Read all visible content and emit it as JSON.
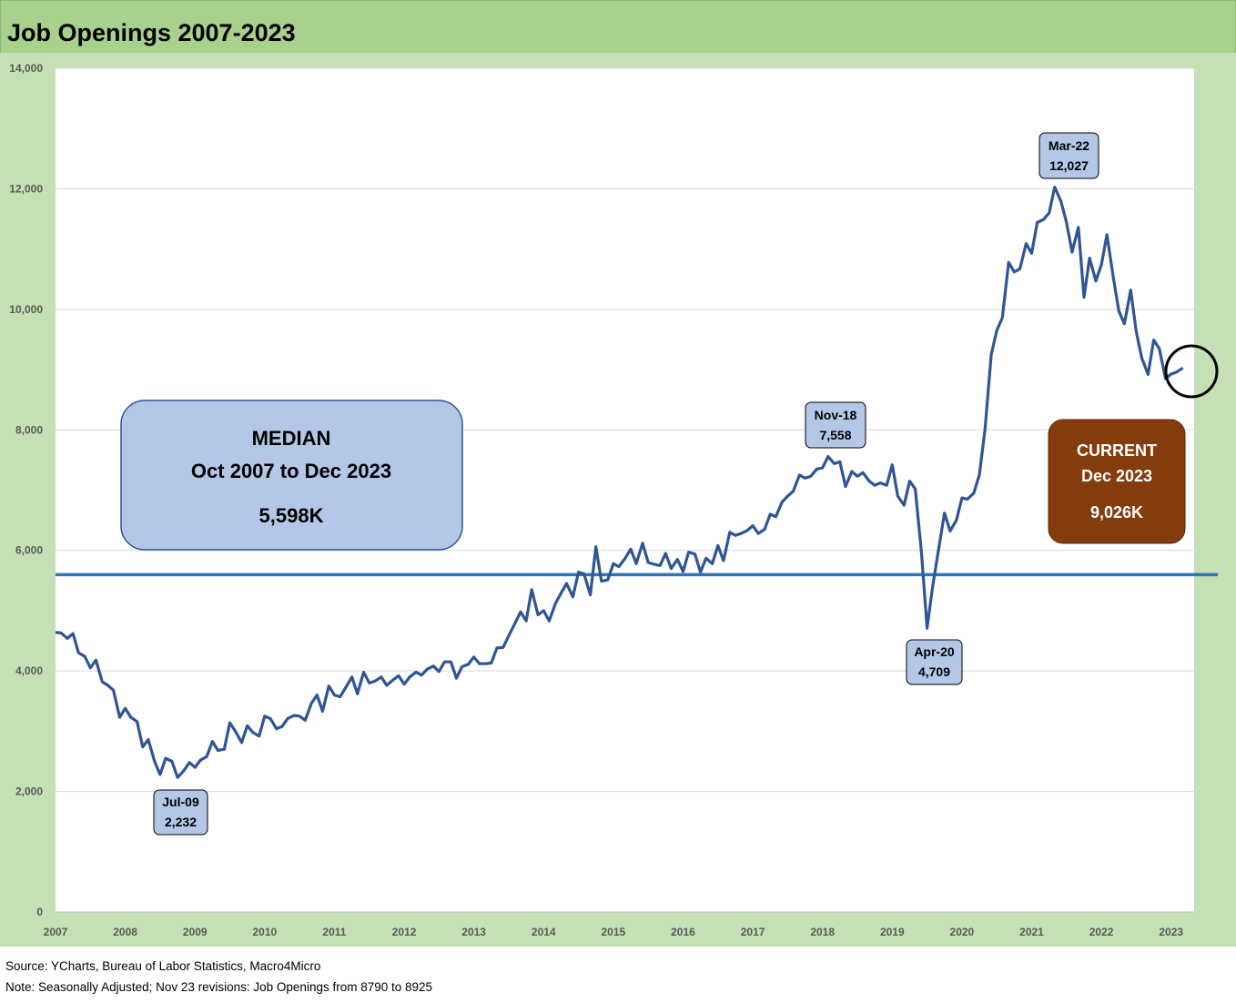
{
  "header": {
    "title": "Job Openings 2007-2023"
  },
  "chart_data": {
    "type": "line",
    "title": "Job Openings 2007-2023",
    "ylabel": "",
    "xlabel": "",
    "ylim": [
      0,
      14000
    ],
    "xlim": [
      2007.0,
      2023.33
    ],
    "y_ticks": [
      0,
      2000,
      4000,
      6000,
      8000,
      10000,
      12000,
      14000
    ],
    "y_tick_labels": [
      "0",
      "2,000",
      "4,000",
      "6,000",
      "8,000",
      "10,000",
      "12,000",
      "14,000"
    ],
    "x_tick_labels": [
      "2007",
      "2008",
      "2009",
      "2010",
      "2011",
      "2012",
      "2013",
      "2014",
      "2015",
      "2016",
      "2017",
      "2018",
      "2019",
      "2020",
      "2021",
      "2022",
      "2023"
    ],
    "series": [
      {
        "name": "Job Openings",
        "color": "#2f5597",
        "points": [
          [
            2007.0,
            4640
          ],
          [
            2007.08,
            4630
          ],
          [
            2007.17,
            4540
          ],
          [
            2007.25,
            4620
          ],
          [
            2007.33,
            4300
          ],
          [
            2007.42,
            4240
          ],
          [
            2007.5,
            4050
          ],
          [
            2007.58,
            4180
          ],
          [
            2007.67,
            3820
          ],
          [
            2007.75,
            3760
          ],
          [
            2007.83,
            3680
          ],
          [
            2007.92,
            3230
          ],
          [
            2008.0,
            3380
          ],
          [
            2008.08,
            3230
          ],
          [
            2008.17,
            3160
          ],
          [
            2008.25,
            2740
          ],
          [
            2008.33,
            2860
          ],
          [
            2008.42,
            2500
          ],
          [
            2008.5,
            2280
          ],
          [
            2008.58,
            2550
          ],
          [
            2008.67,
            2500
          ],
          [
            2008.75,
            2232
          ],
          [
            2008.83,
            2330
          ],
          [
            2008.92,
            2480
          ],
          [
            2009.0,
            2400
          ],
          [
            2009.08,
            2520
          ],
          [
            2009.17,
            2580
          ],
          [
            2009.25,
            2830
          ],
          [
            2009.33,
            2680
          ],
          [
            2009.42,
            2700
          ],
          [
            2009.5,
            3140
          ],
          [
            2009.58,
            3000
          ],
          [
            2009.67,
            2810
          ],
          [
            2009.75,
            3090
          ],
          [
            2009.83,
            2980
          ],
          [
            2009.92,
            2920
          ],
          [
            2010.0,
            3250
          ],
          [
            2010.08,
            3210
          ],
          [
            2010.17,
            3040
          ],
          [
            2010.25,
            3080
          ],
          [
            2010.33,
            3210
          ],
          [
            2010.42,
            3260
          ],
          [
            2010.5,
            3250
          ],
          [
            2010.58,
            3180
          ],
          [
            2010.67,
            3460
          ],
          [
            2010.75,
            3600
          ],
          [
            2010.83,
            3330
          ],
          [
            2010.92,
            3750
          ],
          [
            2011.0,
            3600
          ],
          [
            2011.08,
            3570
          ],
          [
            2011.17,
            3740
          ],
          [
            2011.25,
            3900
          ],
          [
            2011.33,
            3620
          ],
          [
            2011.42,
            3980
          ],
          [
            2011.5,
            3800
          ],
          [
            2011.58,
            3830
          ],
          [
            2011.67,
            3900
          ],
          [
            2011.75,
            3760
          ],
          [
            2011.83,
            3840
          ],
          [
            2011.92,
            3920
          ],
          [
            2012.0,
            3780
          ],
          [
            2012.08,
            3900
          ],
          [
            2012.17,
            3980
          ],
          [
            2012.25,
            3930
          ],
          [
            2012.33,
            4030
          ],
          [
            2012.42,
            4080
          ],
          [
            2012.5,
            3990
          ],
          [
            2012.58,
            4150
          ],
          [
            2012.67,
            4150
          ],
          [
            2012.75,
            3880
          ],
          [
            2012.83,
            4070
          ],
          [
            2012.92,
            4110
          ],
          [
            2013.0,
            4230
          ],
          [
            2013.08,
            4120
          ],
          [
            2013.17,
            4120
          ],
          [
            2013.25,
            4130
          ],
          [
            2013.33,
            4380
          ],
          [
            2013.42,
            4390
          ],
          [
            2013.5,
            4580
          ],
          [
            2013.58,
            4770
          ],
          [
            2013.67,
            4980
          ],
          [
            2013.75,
            4830
          ],
          [
            2013.83,
            5350
          ],
          [
            2013.92,
            4930
          ],
          [
            2014.0,
            5000
          ],
          [
            2014.08,
            4830
          ],
          [
            2014.17,
            5120
          ],
          [
            2014.25,
            5290
          ],
          [
            2014.33,
            5450
          ],
          [
            2014.42,
            5230
          ],
          [
            2014.5,
            5640
          ],
          [
            2014.58,
            5610
          ],
          [
            2014.67,
            5260
          ],
          [
            2014.75,
            6060
          ],
          [
            2014.83,
            5490
          ],
          [
            2014.92,
            5510
          ],
          [
            2015.0,
            5780
          ],
          [
            2015.08,
            5730
          ],
          [
            2015.17,
            5870
          ],
          [
            2015.25,
            6020
          ],
          [
            2015.33,
            5780
          ],
          [
            2015.42,
            6120
          ],
          [
            2015.5,
            5800
          ],
          [
            2015.58,
            5770
          ],
          [
            2015.67,
            5750
          ],
          [
            2015.75,
            5950
          ],
          [
            2015.83,
            5700
          ],
          [
            2015.92,
            5850
          ],
          [
            2016.0,
            5650
          ],
          [
            2016.08,
            5970
          ],
          [
            2016.17,
            5940
          ],
          [
            2016.25,
            5640
          ],
          [
            2016.33,
            5870
          ],
          [
            2016.42,
            5780
          ],
          [
            2016.5,
            6080
          ],
          [
            2016.58,
            5830
          ],
          [
            2016.67,
            6300
          ],
          [
            2016.75,
            6250
          ],
          [
            2016.83,
            6280
          ],
          [
            2016.92,
            6330
          ],
          [
            2017.0,
            6410
          ],
          [
            2017.08,
            6280
          ],
          [
            2017.17,
            6350
          ],
          [
            2017.25,
            6600
          ],
          [
            2017.33,
            6560
          ],
          [
            2017.42,
            6800
          ],
          [
            2017.5,
            6900
          ],
          [
            2017.58,
            6980
          ],
          [
            2017.67,
            7250
          ],
          [
            2017.75,
            7200
          ],
          [
            2017.83,
            7230
          ],
          [
            2017.92,
            7350
          ],
          [
            2018.0,
            7370
          ],
          [
            2018.08,
            7558
          ],
          [
            2018.17,
            7440
          ],
          [
            2018.25,
            7470
          ],
          [
            2018.33,
            7060
          ],
          [
            2018.42,
            7310
          ],
          [
            2018.5,
            7230
          ],
          [
            2018.58,
            7290
          ],
          [
            2018.67,
            7150
          ],
          [
            2018.75,
            7080
          ],
          [
            2018.83,
            7120
          ],
          [
            2018.92,
            7080
          ],
          [
            2019.0,
            7420
          ],
          [
            2019.08,
            6900
          ],
          [
            2019.17,
            6750
          ],
          [
            2019.25,
            7150
          ],
          [
            2019.33,
            7020
          ],
          [
            2019.42,
            5950
          ],
          [
            2019.5,
            4709
          ],
          [
            2019.58,
            5400
          ],
          [
            2019.67,
            6050
          ],
          [
            2019.75,
            6620
          ],
          [
            2019.83,
            6320
          ],
          [
            2019.92,
            6500
          ],
          [
            2020.0,
            6870
          ],
          [
            2020.08,
            6850
          ],
          [
            2020.17,
            6950
          ],
          [
            2020.25,
            7250
          ],
          [
            2020.33,
            8000
          ],
          [
            2020.42,
            9250
          ],
          [
            2020.5,
            9650
          ],
          [
            2020.58,
            9860
          ],
          [
            2020.67,
            10780
          ],
          [
            2020.75,
            10620
          ],
          [
            2020.83,
            10670
          ],
          [
            2020.92,
            11090
          ],
          [
            2021.0,
            10930
          ],
          [
            2021.08,
            11440
          ],
          [
            2021.17,
            11490
          ],
          [
            2021.25,
            11600
          ],
          [
            2021.33,
            12027
          ],
          [
            2021.42,
            11790
          ],
          [
            2021.5,
            11440
          ],
          [
            2021.58,
            10950
          ],
          [
            2021.67,
            11360
          ],
          [
            2021.75,
            10200
          ],
          [
            2021.83,
            10850
          ],
          [
            2021.92,
            10470
          ],
          [
            2022.0,
            10740
          ],
          [
            2022.08,
            11240
          ],
          [
            2022.17,
            10540
          ],
          [
            2022.25,
            9970
          ],
          [
            2022.33,
            9760
          ],
          [
            2022.42,
            10320
          ],
          [
            2022.5,
            9630
          ],
          [
            2022.58,
            9190
          ],
          [
            2022.67,
            8920
          ],
          [
            2022.75,
            9490
          ],
          [
            2022.83,
            9350
          ],
          [
            2022.92,
            8850
          ],
          [
            2023.0,
            8925
          ],
          [
            2023.08,
            8960
          ],
          [
            2023.17,
            9026
          ]
        ]
      },
      {
        "name": "Median",
        "color": "#2e75b6",
        "value": 5598
      }
    ],
    "annotations": [
      {
        "id": "jul09",
        "label": "Jul-09",
        "value_label": "2,232",
        "x": 2008.75,
        "y": 2232
      },
      {
        "id": "nov18",
        "label": "Nov-18",
        "value_label": "7,558",
        "x": 2018.08,
        "y": 7558
      },
      {
        "id": "apr20",
        "label": "Apr-20",
        "value_label": "4,709",
        "x": 2019.5,
        "y": 4709
      },
      {
        "id": "mar22",
        "label": "Mar-22",
        "value_label": "12,027",
        "x": 2021.33,
        "y": 12027
      }
    ],
    "median_box": {
      "line1": "MEDIAN",
      "line2": "Oct 2007 to Dec 2023",
      "line3": "5,598K"
    },
    "current_box": {
      "line1": "CURRENT",
      "line2": "Dec 2023",
      "line3": "9,026K"
    }
  },
  "colors": {
    "header_bg": "#a9d18e",
    "chart_bg": "#c5e0b4",
    "line": "#2f5597",
    "median_line": "#2e75b6",
    "median_box_fill": "#b4c7e7",
    "current_box_fill": "#843c0c"
  },
  "footer": {
    "source": "Source: YCharts, Bureau of Labor Statistics, Macro4Micro",
    "note": "Note: Seasonally Adjusted; Nov 23 revisions: Job Openings from 8790 to 8925"
  }
}
